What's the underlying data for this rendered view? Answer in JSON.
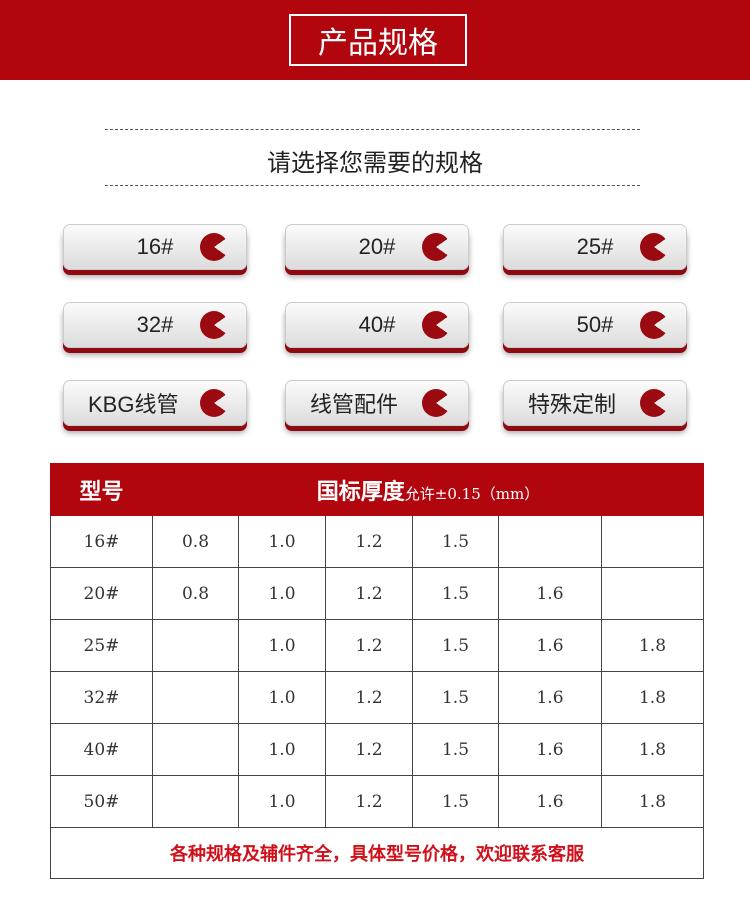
{
  "header": {
    "title": "产品规格"
  },
  "subtitle": "请选择您需要的规格",
  "buttons": [
    {
      "label": "16#"
    },
    {
      "label": "20#"
    },
    {
      "label": "25#"
    },
    {
      "label": "32#"
    },
    {
      "label": "40#"
    },
    {
      "label": "50#"
    },
    {
      "label": "KBG线管"
    },
    {
      "label": "线管配件"
    },
    {
      "label": "特殊定制"
    }
  ],
  "colors": {
    "brand_red": "#b1060e"
  },
  "table": {
    "col_model": "型号",
    "col_thickness": "国标厚度",
    "col_thickness_note": "允许±0.15（mm）",
    "rows": [
      {
        "model": "16#",
        "values": [
          "0.8",
          "1.0",
          "1.2",
          "1.5",
          "",
          ""
        ]
      },
      {
        "model": "20#",
        "values": [
          "0.8",
          "1.0",
          "1.2",
          "1.5",
          "1.6",
          ""
        ]
      },
      {
        "model": "25#",
        "values": [
          "",
          "1.0",
          "1.2",
          "1.5",
          "1.6",
          "1.8"
        ]
      },
      {
        "model": "32#",
        "values": [
          "",
          "1.0",
          "1.2",
          "1.5",
          "1.6",
          "1.8"
        ]
      },
      {
        "model": "40#",
        "values": [
          "",
          "1.0",
          "1.2",
          "1.5",
          "1.6",
          "1.8"
        ]
      },
      {
        "model": "50#",
        "values": [
          "",
          "1.0",
          "1.2",
          "1.5",
          "1.6",
          "1.8"
        ]
      }
    ],
    "footer": "各种规格及辅件齐全，具体型号价格，欢迎联系客服"
  }
}
